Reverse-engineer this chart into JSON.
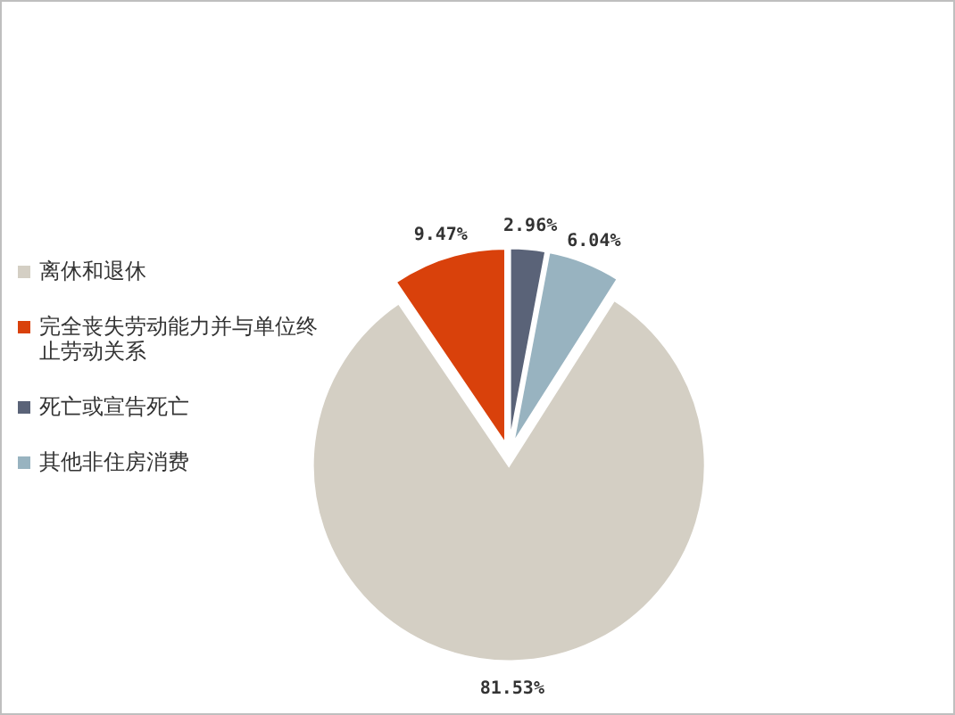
{
  "chart_data": {
    "type": "pie",
    "categories": [
      "离休和退休",
      "完全丧失劳动能力并与单位终止劳动关系",
      "死亡或宣告死亡",
      "其他非住房消费"
    ],
    "values": [
      81.53,
      9.47,
      2.96,
      6.04
    ],
    "colors": [
      "#d4cfc4",
      "#d9410b",
      "#5a6378",
      "#98b3c0"
    ],
    "value_labels": [
      "81.53%",
      "9.47%",
      "2.96%",
      "6.04%"
    ],
    "legend": "left"
  }
}
